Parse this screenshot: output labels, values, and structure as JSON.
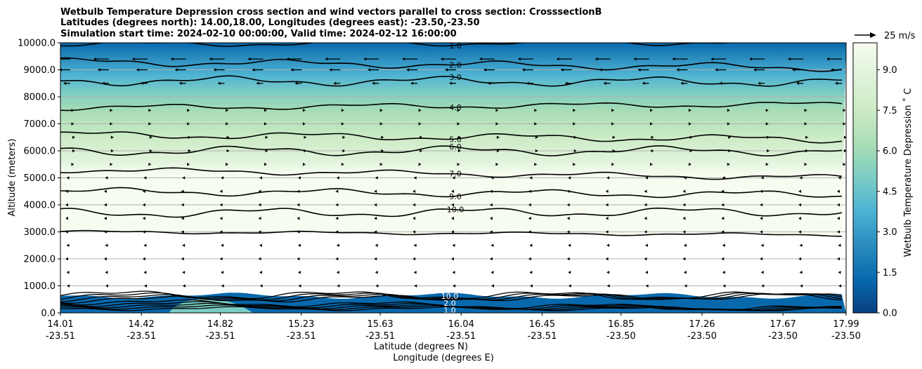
{
  "chart_data": {
    "type": "contour",
    "title_lines": [
      "Wetbulb Temperature Depression cross section and wind vectors parallel to cross section: CrosssectionB",
      "Latitudes (degrees north): 14.00,18.00, Longitudes (degrees east): -23.50,-23.50",
      "Simulation start time: 2024-02-10 00:00:00, Valid time: 2024-02-12 16:00:00"
    ],
    "ylabel": "Altitude (meters)",
    "xlabel_lat": "Latitude (degrees N)",
    "xlabel_lon": "Longitude (degrees E)",
    "ylim": [
      0,
      10000
    ],
    "y_ticks": [
      "0.0",
      "1000.0",
      "2000.0",
      "3000.0",
      "4000.0",
      "5000.0",
      "6000.0",
      "7000.0",
      "8000.0",
      "9000.0",
      "10000.0"
    ],
    "y_tick_values": [
      0,
      1000,
      2000,
      3000,
      4000,
      5000,
      6000,
      7000,
      8000,
      9000,
      10000
    ],
    "x_ticks_lat": [
      "14.01",
      "14.42",
      "14.82",
      "15.23",
      "15.63",
      "16.04",
      "16.45",
      "16.85",
      "17.26",
      "17.67",
      "17.99"
    ],
    "x_ticks_lon": [
      "-23.51",
      "-23.51",
      "-23.51",
      "-23.51",
      "-23.51",
      "-23.51",
      "-23.51",
      "-23.50",
      "-23.50",
      "-23.50",
      "-23.50"
    ],
    "x_tick_values": [
      14.01,
      14.42,
      14.82,
      15.23,
      15.63,
      16.04,
      16.45,
      16.85,
      17.26,
      17.67,
      17.99
    ],
    "xlim": [
      14.01,
      17.99
    ],
    "colorbar": {
      "label": "Wetbulb Temperature Depression ˚ C",
      "range": [
        0,
        10
      ],
      "ticks": [
        "0.0",
        "1.5",
        "3.0",
        "4.5",
        "6.0",
        "7.5",
        "9.0"
      ],
      "tick_values": [
        0,
        1.5,
        3.0,
        4.5,
        6.0,
        7.5,
        9.0
      ],
      "colormap": "GnBu_r",
      "colors": [
        "#084081",
        "#0868ac",
        "#2b8cbe",
        "#4eb3d3",
        "#7bccc4",
        "#a8ddb5",
        "#ccebc5",
        "#e0f3db",
        "#f7fcf0"
      ]
    },
    "contour_levels": [
      {
        "value": 1.0,
        "label": "1.0",
        "alt": 9950
      },
      {
        "value": 2.0,
        "label": "2.0",
        "alt": 9300
      },
      {
        "value": 3.0,
        "label": "3.0",
        "alt": 8600
      },
      {
        "value": 4.0,
        "label": "4.0",
        "alt": 7600
      },
      {
        "value": 5.0,
        "label": "5.0",
        "alt": 6600
      },
      {
        "value": 6.0,
        "label": "6.0",
        "alt": 6000
      },
      {
        "value": 7.0,
        "label": "7.0",
        "alt": 5300
      },
      {
        "value": 9.0,
        "label": "9.0",
        "alt": 4500
      },
      {
        "value": 10.0,
        "label": "10.0",
        "alt": 3700
      }
    ],
    "upper_moisture_boundary_alt": 3000,
    "surface_layer": {
      "top_alt": 800,
      "labels": [
        "10.0",
        "2.0",
        "1.0"
      ]
    },
    "wind_reference": {
      "label": "25 m/s",
      "speed": 25
    },
    "wind_vectors": [
      {
        "alt": 9400,
        "u": -6
      },
      {
        "alt": 9000,
        "u": -4
      },
      {
        "alt": 8500,
        "u": -2
      },
      {
        "alt": 7500,
        "u": 0.5
      },
      {
        "alt": 7000,
        "u": 0.5
      },
      {
        "alt": 6500,
        "u": 1
      },
      {
        "alt": 6000,
        "u": 1
      },
      {
        "alt": 5500,
        "u": 0.5
      },
      {
        "alt": 5000,
        "u": -0.5
      },
      {
        "alt": 4500,
        "u": -1
      },
      {
        "alt": 4000,
        "u": -1
      },
      {
        "alt": 3500,
        "u": -1
      },
      {
        "alt": 3000,
        "u": -1
      },
      {
        "alt": 2500,
        "u": -0.5
      },
      {
        "alt": 2000,
        "u": -1
      },
      {
        "alt": 1500,
        "u": -0.5
      },
      {
        "alt": 1000,
        "u": -0.3
      }
    ]
  }
}
